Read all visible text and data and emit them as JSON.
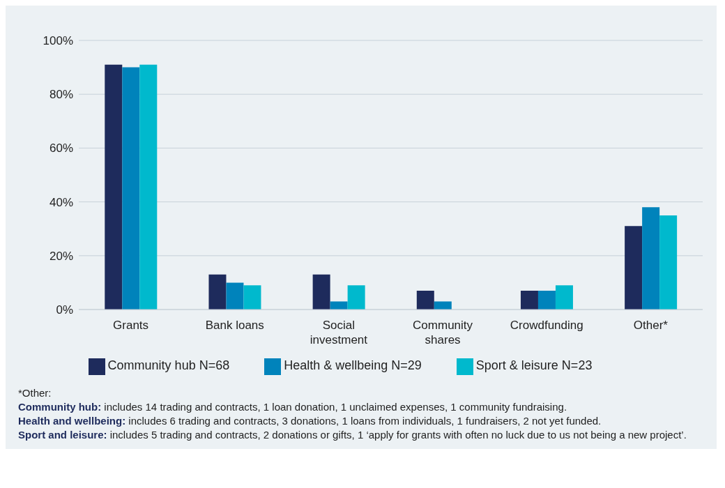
{
  "chart_data": {
    "type": "bar",
    "categories": [
      "Grants",
      "Bank loans",
      "Social investment",
      "Community shares",
      "Crowdfunding",
      "Other*"
    ],
    "series": [
      {
        "name": "Community hub N=68",
        "color": "#1e2b5c",
        "values": [
          91,
          13,
          13,
          7,
          7,
          31
        ]
      },
      {
        "name": "Health & wellbeing N=29",
        "color": "#0083bb",
        "values": [
          90,
          10,
          3,
          3,
          7,
          38
        ]
      },
      {
        "name": "Sport & leisure N=23",
        "color": "#00b9cd",
        "values": [
          91,
          9,
          9,
          0,
          9,
          35
        ]
      }
    ],
    "ylim": [
      0,
      100
    ],
    "yticks": [
      {
        "value": 0,
        "label": "0%"
      },
      {
        "value": 20,
        "label": "20%"
      },
      {
        "value": 40,
        "label": "40%"
      },
      {
        "value": 60,
        "label": "60%"
      },
      {
        "value": 80,
        "label": "80%"
      },
      {
        "value": 100,
        "label": "100%"
      }
    ],
    "grid": "y",
    "legend": "bottom",
    "annotations": [
      "*Other:",
      "Community hub: includes 14 trading and contracts, 1 loan donation, 1 unclaimed expenses, 1 community fundraising.",
      "Health and wellbeing: includes 6 trading and contracts, 3 donations, 1 loans from individuals, 1 fundraisers, 2 not yet funded.",
      "Sport and leisure: includes 5 trading and contracts, 2 donations or gifts, 1 ‘apply for grants with often no luck due to us not being a new project’."
    ]
  }
}
